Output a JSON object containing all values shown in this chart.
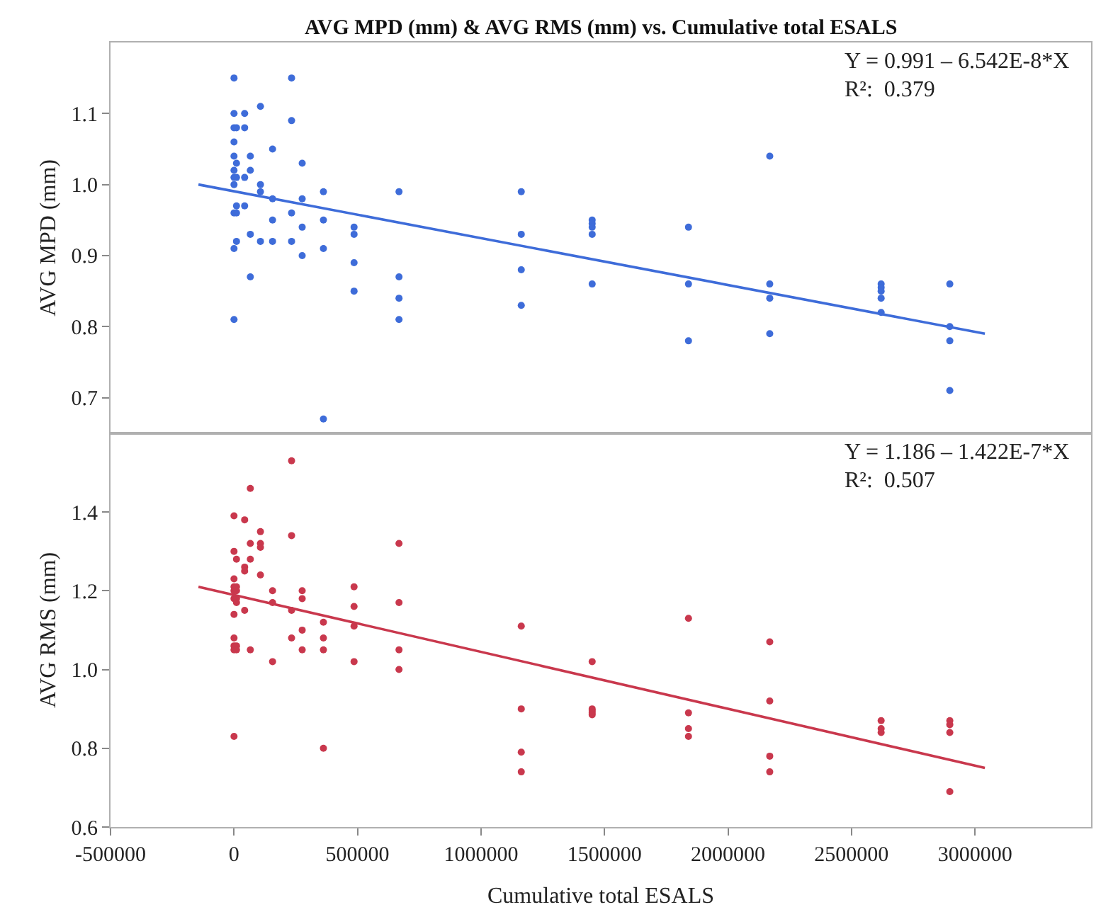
{
  "chart_data": [
    {
      "type": "scatter",
      "title": "AVG MPD (mm) & AVG RMS (mm) vs. Cumulative total ESALS",
      "ylabel": "AVG MPD (mm)",
      "marker": "circle",
      "tick_labels": "y",
      "annotations": [
        "Y = 0.991 – 6.542E-8*X",
        "R²:  0.379"
      ],
      "xlim": [
        -500000,
        3470000
      ],
      "xticks": [
        -500000,
        0,
        500000,
        1000000,
        1500000,
        2000000,
        2500000,
        3000000
      ],
      "ylim": [
        0.65,
        1.2
      ],
      "yticks": [
        0.7,
        0.8,
        0.9,
        {
          "value": 1,
          "label": "1.0"
        },
        1.1
      ],
      "series": [
        {
          "color": "#3e6cd9",
          "x": [
            0,
            0,
            0,
            0,
            0,
            0,
            0,
            0,
            0,
            0,
            0,
            10000,
            10000,
            10000,
            10000,
            10000,
            10000,
            43000,
            43000,
            43000,
            43000,
            66000,
            66000,
            66000,
            66000,
            107000,
            107000,
            107000,
            107000,
            156000,
            156000,
            156000,
            156000,
            233000,
            233000,
            233000,
            233000,
            276000,
            276000,
            276000,
            276000,
            362000,
            362000,
            362000,
            362000,
            486000,
            486000,
            486000,
            486000,
            668000,
            668000,
            668000,
            668000,
            1163000,
            1163000,
            1163000,
            1163000,
            1450000,
            1450000,
            1450000,
            1450000,
            1450000,
            1840000,
            1840000,
            1840000,
            2169000,
            2169000,
            2169000,
            2169000,
            2620000,
            2620000,
            2620000,
            2620000,
            2620000,
            2898000,
            2898000,
            2898000,
            2898000
          ],
          "values": [
            1.15,
            1.1,
            1.08,
            1.06,
            1.04,
            1.02,
            1.01,
            1.0,
            0.96,
            0.91,
            0.81,
            1.08,
            1.03,
            1.01,
            0.97,
            0.96,
            0.92,
            1.1,
            1.08,
            1.01,
            0.97,
            1.04,
            1.02,
            0.93,
            0.87,
            1.11,
            1.0,
            0.99,
            0.92,
            1.05,
            0.98,
            0.95,
            0.92,
            1.15,
            1.09,
            0.96,
            0.92,
            1.03,
            0.98,
            0.94,
            0.9,
            0.99,
            0.95,
            0.91,
            0.67,
            0.94,
            0.93,
            0.89,
            0.85,
            0.99,
            0.87,
            0.84,
            0.81,
            0.99,
            0.93,
            0.88,
            0.83,
            0.95,
            0.945,
            0.94,
            0.93,
            0.86,
            0.94,
            0.86,
            0.78,
            1.04,
            0.86,
            0.84,
            0.79,
            0.86,
            0.855,
            0.85,
            0.84,
            0.82,
            0.86,
            0.8,
            0.78,
            0.71
          ]
        },
        {
          "type": "line",
          "marker": "none",
          "color": "#3e6cd9",
          "x": [
            -144000,
            3040000
          ],
          "values": [
            1.0,
            0.79
          ]
        }
      ]
    },
    {
      "type": "scatter",
      "ylabel": "AVG RMS (mm)",
      "xlabel": "Cumulative total ESALS",
      "marker": "circle",
      "annotations": [
        "Y = 1.186 – 1.422E-7*X",
        "R²:  0.507"
      ],
      "xlim": [
        -500000,
        3470000
      ],
      "xticks": [
        -500000,
        0,
        500000,
        1000000,
        1500000,
        2000000,
        2500000,
        3000000
      ],
      "ylim": [
        0.6,
        1.6
      ],
      "yticks": [
        0.6,
        0.8,
        {
          "value": 1,
          "label": "1.0"
        },
        1.2,
        1.4
      ],
      "series": [
        {
          "color": "#c9384d",
          "x": [
            0,
            0,
            0,
            0,
            0,
            0,
            0,
            0,
            0,
            0,
            0,
            10000,
            10000,
            10000,
            10000,
            10000,
            10000,
            10000,
            43000,
            43000,
            43000,
            43000,
            66000,
            66000,
            66000,
            66000,
            107000,
            107000,
            107000,
            107000,
            156000,
            156000,
            156000,
            233000,
            233000,
            233000,
            233000,
            276000,
            276000,
            276000,
            276000,
            362000,
            362000,
            362000,
            362000,
            486000,
            486000,
            486000,
            486000,
            668000,
            668000,
            668000,
            668000,
            1163000,
            1163000,
            1163000,
            1163000,
            1450000,
            1450000,
            1450000,
            1450000,
            1450000,
            1840000,
            1840000,
            1840000,
            1840000,
            2169000,
            2169000,
            2169000,
            2169000,
            2620000,
            2620000,
            2620000,
            2898000,
            2898000,
            2898000,
            2898000
          ],
          "values": [
            1.39,
            1.3,
            1.23,
            1.21,
            1.2,
            1.18,
            1.14,
            1.08,
            1.06,
            1.05,
            0.83,
            1.28,
            1.21,
            1.2,
            1.18,
            1.17,
            1.06,
            1.05,
            1.38,
            1.26,
            1.25,
            1.15,
            1.46,
            1.32,
            1.28,
            1.05,
            1.35,
            1.32,
            1.31,
            1.24,
            1.2,
            1.17,
            1.02,
            1.53,
            1.34,
            1.15,
            1.08,
            1.2,
            1.18,
            1.1,
            1.05,
            1.12,
            1.08,
            1.05,
            0.8,
            1.21,
            1.16,
            1.11,
            1.02,
            1.32,
            1.17,
            1.05,
            1.0,
            1.11,
            0.9,
            0.79,
            0.74,
            1.02,
            0.9,
            0.895,
            0.89,
            0.885,
            1.13,
            0.89,
            0.85,
            0.83,
            1.07,
            0.92,
            0.78,
            0.74,
            0.87,
            0.85,
            0.84,
            0.87,
            0.86,
            0.84,
            0.69
          ]
        },
        {
          "type": "line",
          "marker": "none",
          "color": "#c9384d",
          "x": [
            -144000,
            3040000
          ],
          "values": [
            1.21,
            0.75
          ]
        }
      ]
    }
  ]
}
